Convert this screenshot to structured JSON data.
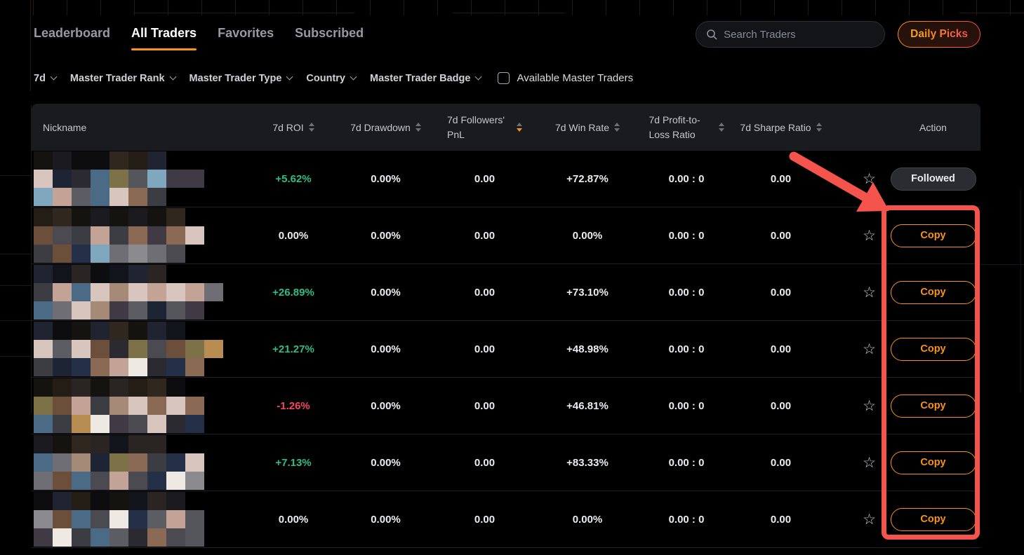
{
  "colors": {
    "accent_orange": "#f7931a",
    "positive_green": "#2ebd85",
    "negative_red": "#f6465d",
    "annotation_red": "#f4544c",
    "header_bg": "#1a1b1f"
  },
  "icons": {
    "star": "☆",
    "search": "magnifier",
    "sort": "up-down-triangles",
    "chevron": "down"
  },
  "tabs": {
    "items": [
      {
        "label": "Leaderboard",
        "active": false
      },
      {
        "label": "All Traders",
        "active": true
      },
      {
        "label": "Favorites",
        "active": false
      },
      {
        "label": "Subscribed",
        "active": false
      }
    ]
  },
  "header_right": {
    "search_placeholder": "Search Traders",
    "daily_picks_label": "Daily Picks"
  },
  "filters": {
    "dropdowns": [
      {
        "label": "7d"
      },
      {
        "label": "Master Trader Rank"
      },
      {
        "label": "Master Trader Type"
      },
      {
        "label": "Country"
      },
      {
        "label": "Master Trader Badge"
      }
    ],
    "checkbox": {
      "label": "Available Master Traders",
      "checked": false
    }
  },
  "table": {
    "headers": {
      "nickname": "Nickname",
      "roi": "7d ROI",
      "drawdown": "7d Drawdown",
      "followers_pnl": "7d Followers' PnL",
      "win_rate": "7d Win Rate",
      "profit_loss_ratio": "7d Profit-to-Loss Ratio",
      "sharpe": "7d Sharpe Ratio",
      "action": "Action"
    },
    "sort": {
      "column": "followers_pnl",
      "direction": "desc"
    },
    "rows": [
      {
        "roi": "+5.62%",
        "roi_sign": "positive",
        "drawdown": "0.00%",
        "followers_pnl": "0.00",
        "win_rate": "+72.87%",
        "profit_loss_ratio": "0.00 : 0",
        "sharpe": "0.00",
        "action_label": "Followed",
        "action_type": "followed",
        "favorited": false
      },
      {
        "roi": "0.00%",
        "roi_sign": "neutral",
        "drawdown": "0.00%",
        "followers_pnl": "0.00",
        "win_rate": "0.00%",
        "profit_loss_ratio": "0.00 : 0",
        "sharpe": "0.00",
        "action_label": "Copy",
        "action_type": "copy",
        "favorited": false
      },
      {
        "roi": "+26.89%",
        "roi_sign": "positive",
        "drawdown": "0.00%",
        "followers_pnl": "0.00",
        "win_rate": "+73.10%",
        "profit_loss_ratio": "0.00 : 0",
        "sharpe": "0.00",
        "action_label": "Copy",
        "action_type": "copy",
        "favorited": false
      },
      {
        "roi": "+21.27%",
        "roi_sign": "positive",
        "drawdown": "0.00%",
        "followers_pnl": "0.00",
        "win_rate": "+48.98%",
        "profit_loss_ratio": "0.00 : 0",
        "sharpe": "0.00",
        "action_label": "Copy",
        "action_type": "copy",
        "favorited": false
      },
      {
        "roi": "-1.26%",
        "roi_sign": "negative",
        "drawdown": "0.00%",
        "followers_pnl": "0.00",
        "win_rate": "+46.81%",
        "profit_loss_ratio": "0.00 : 0",
        "sharpe": "0.00",
        "action_label": "Copy",
        "action_type": "copy",
        "favorited": false
      },
      {
        "roi": "+7.13%",
        "roi_sign": "positive",
        "drawdown": "0.00%",
        "followers_pnl": "0.00",
        "win_rate": "+83.33%",
        "profit_loss_ratio": "0.00 : 0",
        "sharpe": "0.00",
        "action_label": "Copy",
        "action_type": "copy",
        "favorited": false
      },
      {
        "roi": "0.00%",
        "roi_sign": "neutral",
        "drawdown": "0.00%",
        "followers_pnl": "0.00",
        "win_rate": "0.00%",
        "profit_loss_ratio": "0.00 : 0",
        "sharpe": "0.00",
        "action_label": "Copy",
        "action_type": "copy",
        "favorited": false
      }
    ]
  },
  "annotations": {
    "arrow": "red arrow pointing at Copy button column",
    "highlight_box": "red rounded rectangle around Copy button column"
  },
  "nickname_blur": {
    "palette_dark": [
      "#15130f",
      "#241d16",
      "#1a1a1f",
      "#2a2423",
      "#12141c",
      "#1f2430",
      "#30281e",
      "#0d0d10"
    ],
    "palette_mix": [
      "#4a4a50",
      "#5c5c63",
      "#6e6e74",
      "#8a8a8f",
      "#3c3c43",
      "#55555c",
      "#a58a77",
      "#c2a395",
      "#d8c6be",
      "#6b4f3b",
      "#8a6a55",
      "#403a44",
      "#243048",
      "#4a6a86",
      "#7fa7bd",
      "#7d7147",
      "#efe9e4",
      "#2a2a30",
      "#b98d52",
      "#1d2433"
    ],
    "rows": [
      {
        "lines": [
          7,
          9,
          7
        ]
      },
      {
        "lines": [
          8,
          9,
          8
        ]
      },
      {
        "lines": [
          7,
          10,
          9
        ]
      },
      {
        "lines": [
          8,
          10,
          9
        ]
      },
      {
        "lines": [
          8,
          9,
          9
        ]
      },
      {
        "lines": [
          7,
          9,
          9
        ]
      },
      {
        "lines": [
          8,
          9,
          9
        ]
      }
    ]
  }
}
